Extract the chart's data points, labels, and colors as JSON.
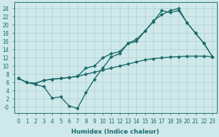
{
  "xlabel": "Humidex (Indice chaleur)",
  "bg_color": "#cfe8ea",
  "grid_color": "#aacfd2",
  "line_color": "#1a6b6b",
  "x_ticks": [
    0,
    1,
    2,
    3,
    4,
    5,
    6,
    7,
    8,
    9,
    10,
    11,
    12,
    13,
    14,
    15,
    16,
    17,
    18,
    19,
    20,
    21,
    22,
    23
  ],
  "y_ticks": [
    0,
    2,
    4,
    6,
    8,
    10,
    12,
    14,
    16,
    18,
    20,
    22,
    24
  ],
  "ylim": [
    -1.5,
    25.5
  ],
  "xlim": [
    -0.5,
    23.5
  ],
  "line1_x": [
    0,
    1,
    2,
    3,
    4,
    5,
    6,
    7,
    8,
    9,
    10,
    11,
    12,
    13,
    14,
    15,
    16,
    17,
    18,
    19,
    20,
    21,
    22,
    23
  ],
  "line1_y": [
    7.0,
    6.0,
    5.8,
    6.5,
    6.8,
    7.0,
    7.2,
    7.5,
    8.0,
    8.5,
    9.0,
    9.5,
    10.0,
    10.5,
    11.0,
    11.5,
    11.8,
    12.0,
    12.2,
    12.3,
    12.4,
    12.4,
    12.4,
    12.3
  ],
  "line2_x": [
    0,
    1,
    2,
    3,
    4,
    5,
    6,
    7,
    8,
    9,
    10,
    11,
    12,
    13,
    14,
    15,
    16,
    17,
    18,
    19,
    20,
    21,
    22,
    23
  ],
  "line2_y": [
    7.0,
    6.0,
    5.8,
    6.5,
    6.8,
    7.0,
    7.2,
    7.5,
    9.5,
    10.0,
    12.0,
    13.0,
    13.5,
    15.5,
    16.5,
    18.5,
    20.8,
    23.5,
    23.0,
    23.5,
    20.5,
    18.0,
    15.5,
    12.3
  ],
  "line3_x": [
    0,
    1,
    2,
    3,
    4,
    5,
    6,
    7,
    8,
    9,
    10,
    11,
    12,
    13,
    14,
    15,
    16,
    17,
    18,
    19,
    20,
    21,
    22,
    23
  ],
  "line3_y": [
    7.0,
    6.0,
    5.5,
    5.0,
    2.2,
    2.5,
    0.3,
    -0.3,
    3.5,
    6.8,
    9.5,
    12.2,
    13.0,
    15.5,
    16.0,
    18.5,
    21.0,
    22.5,
    23.5,
    24.0,
    20.5,
    18.0,
    15.5,
    12.3
  ],
  "marker_size": 2.5,
  "linewidth": 1.0,
  "tick_fontsize": 5.5,
  "label_fontsize": 6.5
}
